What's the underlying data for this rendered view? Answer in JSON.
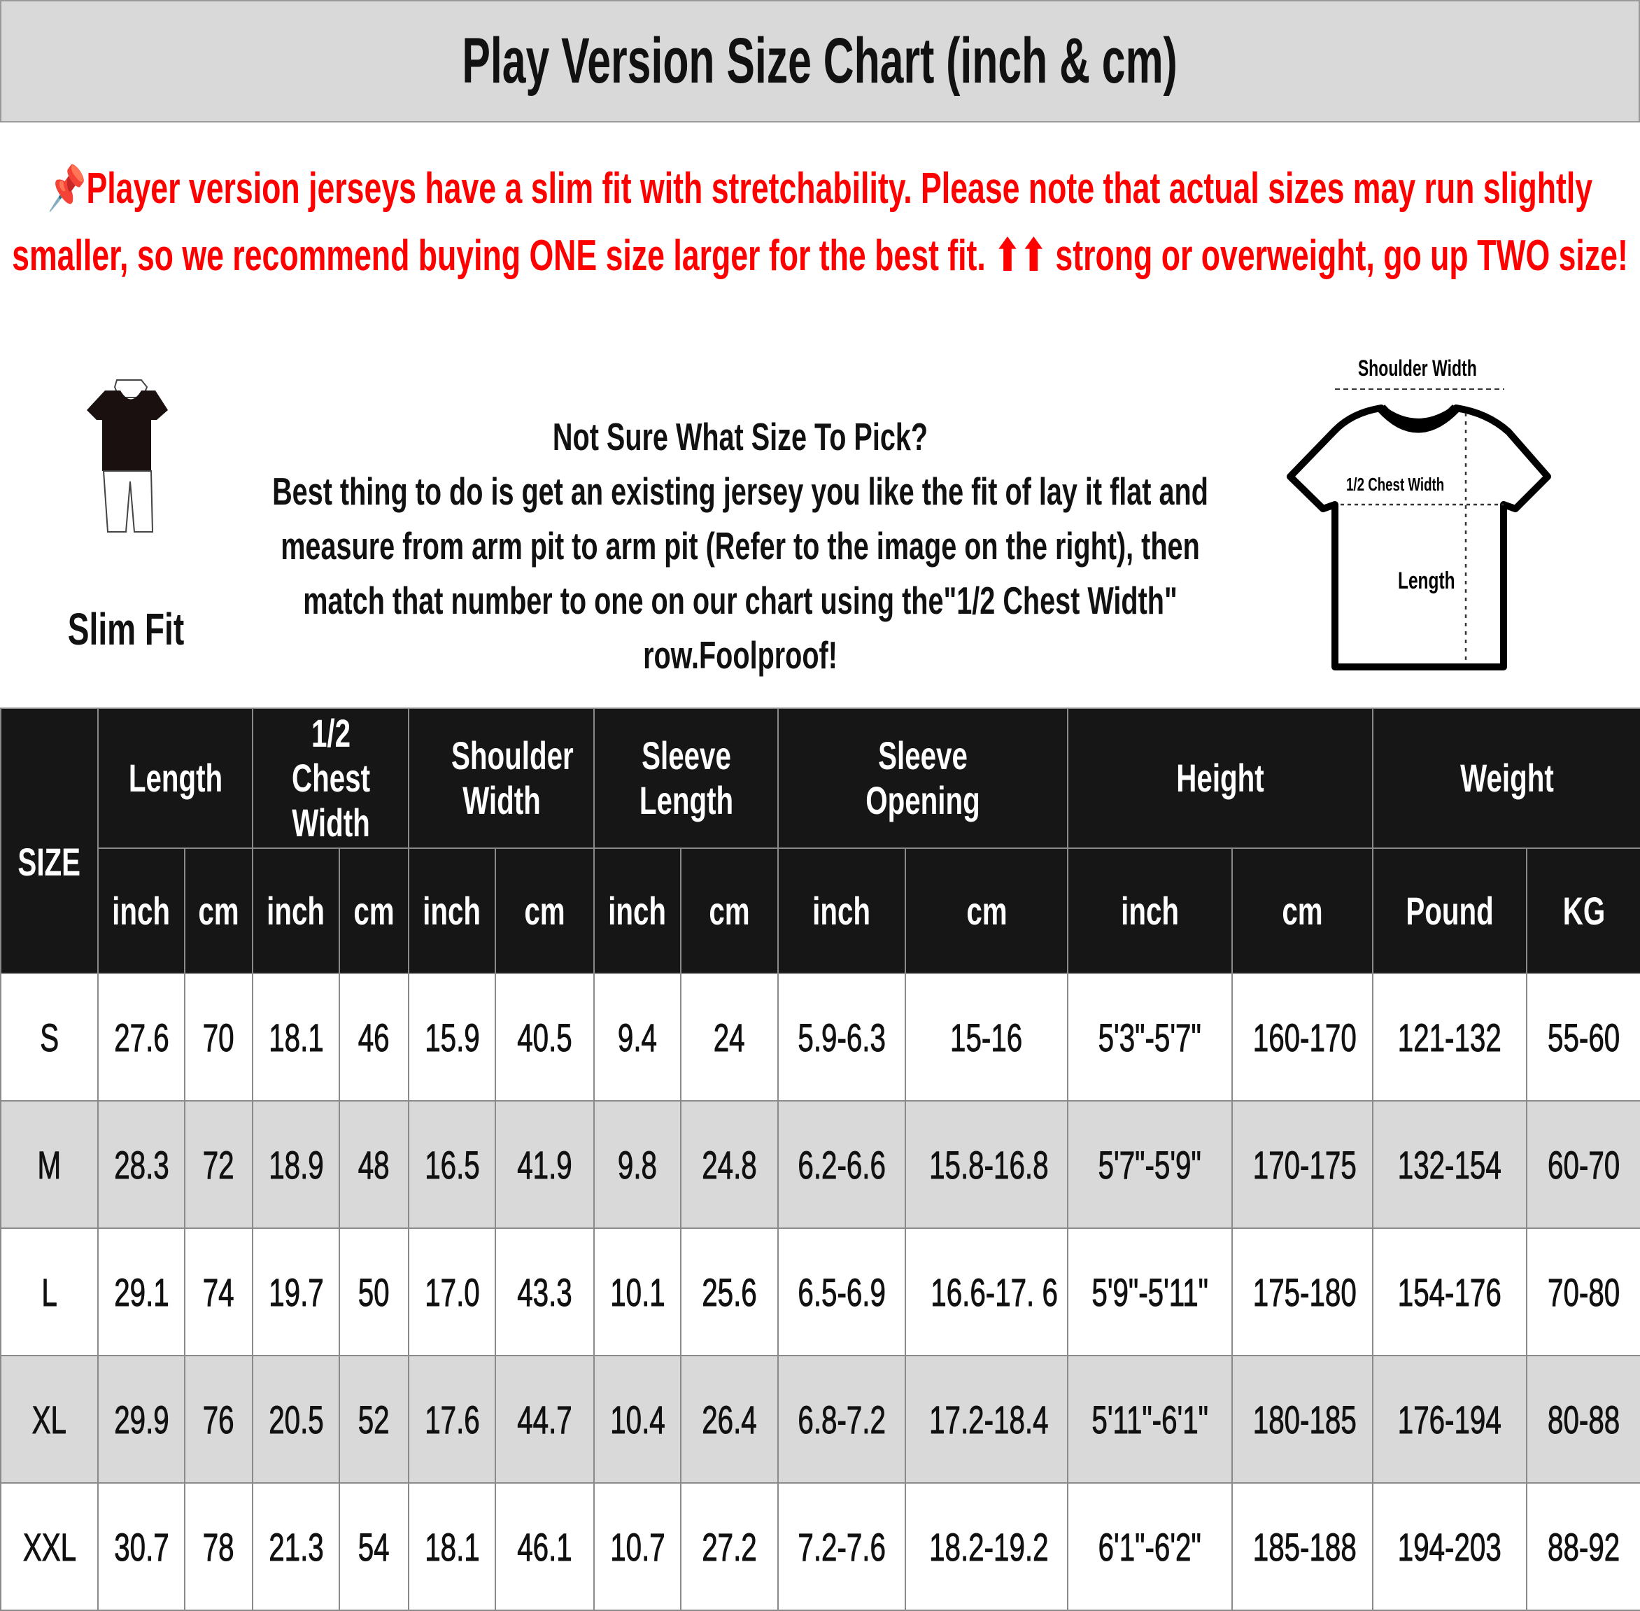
{
  "title": "Play Version Size Chart (inch & cm)",
  "notice": {
    "pin_icon": "pushpin-icon",
    "text": "Player version jerseys have a slim fit with stretchability. Please note that actual sizes may run slightly smaller, so we recommend buying ONE size larger for the best fit. ⬆⬆ strong or overweight, go up TWO size!",
    "color": "#ff0000"
  },
  "fit": {
    "label": "Slim Fit"
  },
  "guide": {
    "heading": "Not Sure What Size To Pick?",
    "body": "Best thing to do is get an existing jersey you like the fit of lay it flat and measure from arm pit to arm pit (Refer to the image on the right), then match that number to one on our chart using the\"1/2 Chest Width\" row.Foolproof!"
  },
  "diagram": {
    "shoulder": "Shoulder Width",
    "chest": "1/2 Chest Width",
    "length": "Length"
  },
  "table": {
    "size_header": "SIZE",
    "groups": [
      {
        "label": "Length",
        "units": [
          "inch",
          "cm"
        ]
      },
      {
        "label": "1/2 Chest Width",
        "units": [
          "inch",
          "cm"
        ]
      },
      {
        "label": "Shoulder Width",
        "units": [
          "inch",
          "cm"
        ]
      },
      {
        "label": "Sleeve Length",
        "units": [
          "inch",
          "cm"
        ]
      },
      {
        "label": "Sleeve Opening",
        "units": [
          "inch",
          "cm"
        ]
      },
      {
        "label": "Height",
        "units": [
          "inch",
          "cm"
        ]
      },
      {
        "label": "Weight",
        "units": [
          "Pound",
          "KG"
        ]
      }
    ],
    "rows": [
      [
        "S",
        "27.6",
        "70",
        "18.1",
        "46",
        "15.9",
        "40.5",
        "9.4",
        "24",
        "5.9-6.3",
        "15-16",
        "5'3\"-5'7\"",
        "160-170",
        "121-132",
        "55-60"
      ],
      [
        "M",
        "28.3",
        "72",
        "18.9",
        "48",
        "16.5",
        "41.9",
        "9.8",
        "24.8",
        "6.2-6.6",
        "15.8-16.8",
        "5'7\"-5'9\"",
        "170-175",
        "132-154",
        "60-70"
      ],
      [
        "L",
        "29.1",
        "74",
        "19.7",
        "50",
        "17.0",
        "43.3",
        "10.1",
        "25.6",
        "6.5-6.9",
        "16.6-17. 6",
        "5'9\"-5'11\"",
        "175-180",
        "154-176",
        "70-80"
      ],
      [
        "XL",
        "29.9",
        "76",
        "20.5",
        "52",
        "17.6",
        "44.7",
        "10.4",
        "26.4",
        "6.8-7.2",
        "17.2-18.4",
        "5'11\"-6'1\"",
        "180-185",
        "176-194",
        "80-88"
      ],
      [
        "XXL",
        "30.7",
        "78",
        "21.3",
        "54",
        "18.1",
        "46.1",
        "10.7",
        "27.2",
        "7.2-7.6",
        "18.2-19.2",
        "6'1\"-6'2\"",
        "185-188",
        "194-203",
        "88-92"
      ]
    ]
  }
}
